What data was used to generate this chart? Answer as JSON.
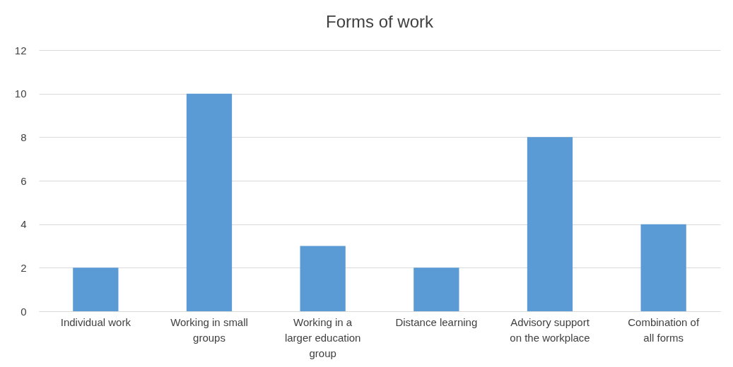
{
  "chart_data": {
    "type": "bar",
    "title": "Forms of work",
    "categories": [
      "Individual work",
      "Working in small groups",
      "Working in a larger education group",
      "Distance learning",
      "Advisory support on the workplace",
      "Combination of all forms"
    ],
    "values": [
      2,
      10,
      3,
      2,
      8,
      4
    ],
    "color": "#5b9bd5",
    "ylim": [
      0,
      12
    ],
    "yticks": [
      0,
      2,
      4,
      6,
      8,
      10,
      12
    ],
    "grid": "y"
  }
}
